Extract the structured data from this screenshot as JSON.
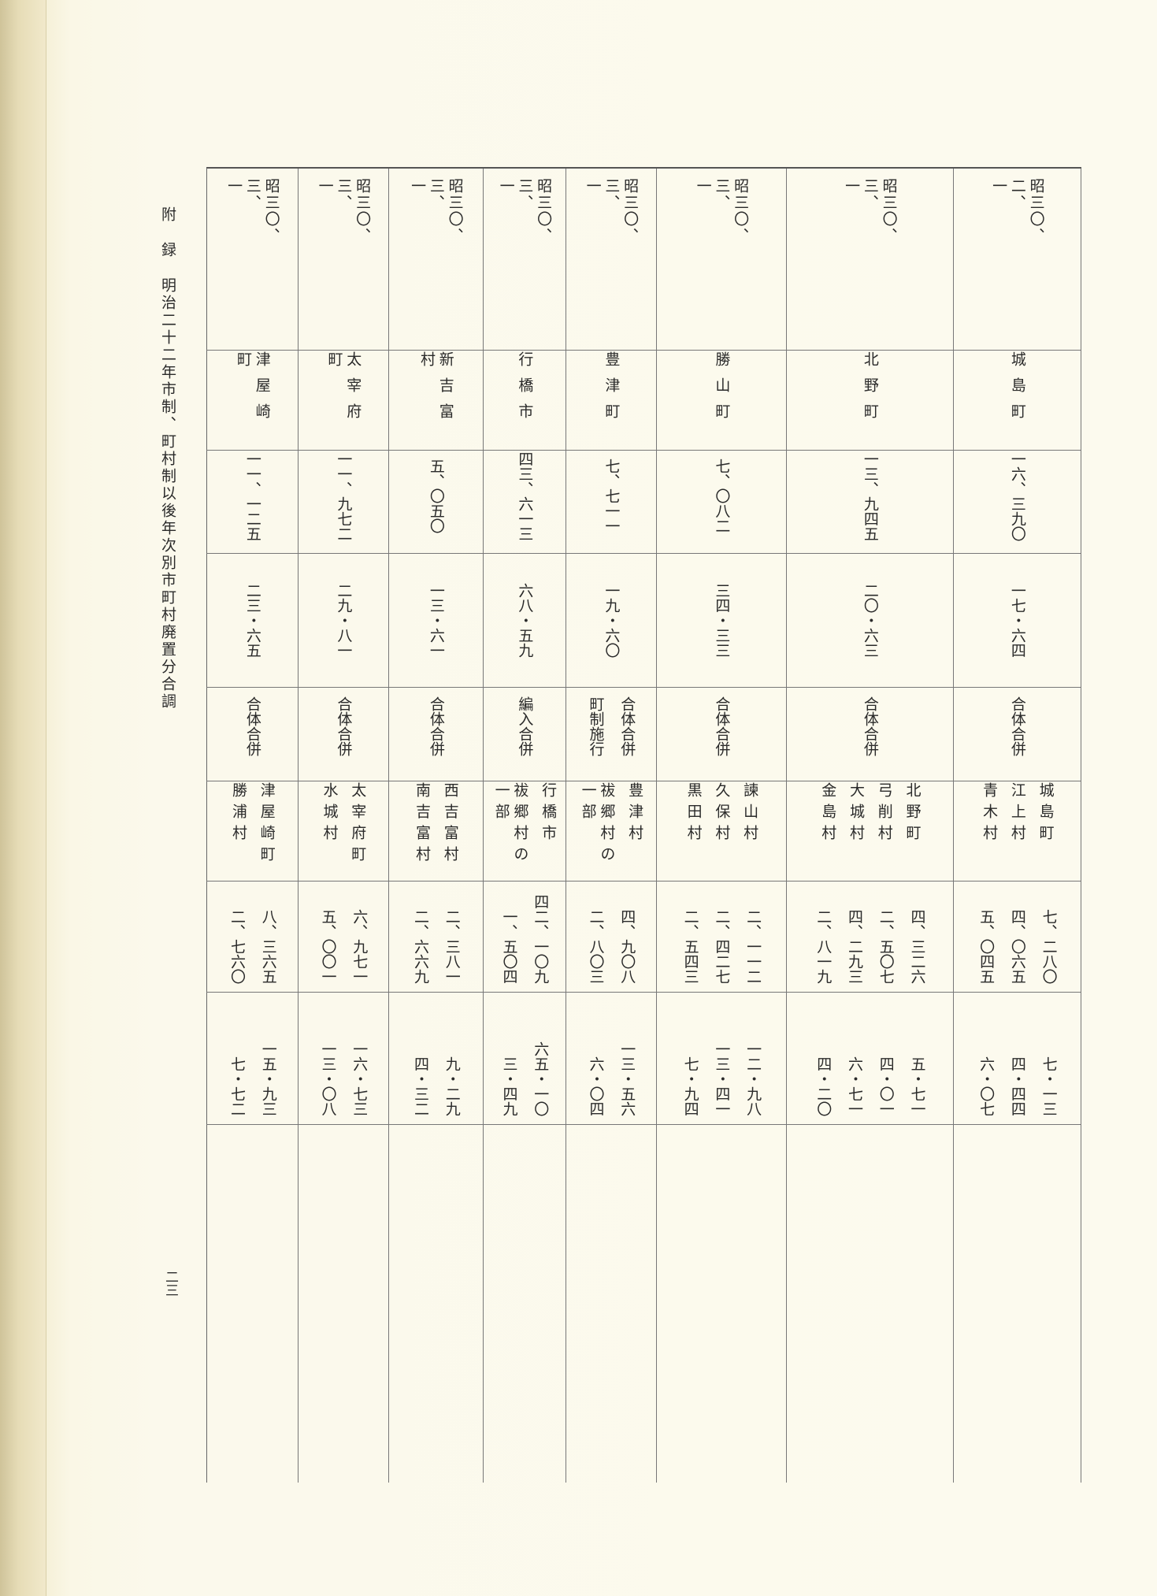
{
  "side_title": {
    "part1": "附",
    "part2": "録",
    "part3": "明治二十二年市制、町村制以後年次別市町村廃置分合調"
  },
  "page_number": "二三",
  "columns": [
    {
      "date": [
        "昭三〇、",
        "二、",
        "一"
      ],
      "name": "城島町",
      "population": "一六、三九〇",
      "area": "一七・六四",
      "type": [
        "合体合併"
      ],
      "old_names": [
        "城島町",
        "江上村",
        "青木村"
      ],
      "old_populations": [
        "七、二八〇",
        "四、〇六五",
        "五、〇四五"
      ],
      "old_areas": [
        "七・一三",
        "四・四四",
        "六・〇七"
      ]
    },
    {
      "date": [
        "昭三〇、",
        "三、",
        "一"
      ],
      "name": "北野町",
      "population": "一三、九四五",
      "area": "二〇・六三",
      "type": [
        "合体合併"
      ],
      "old_names": [
        "北野町",
        "弓削村",
        "大城村",
        "金島村"
      ],
      "old_populations": [
        "四、三二六",
        "二、五〇七",
        "四、二九三",
        "二、八一九"
      ],
      "old_areas": [
        "五・七一",
        "四・〇一",
        "六・七一",
        "四・二〇"
      ]
    },
    {
      "date": [
        "昭三〇、",
        "三、",
        "一"
      ],
      "name": "勝山町",
      "population": "七、〇八二",
      "area": "三四・三三",
      "type": [
        "合体合併"
      ],
      "old_names": [
        "諫山村",
        "久保村",
        "黒田村"
      ],
      "old_populations": [
        "二、一一二",
        "二、四二七",
        "二、五四三"
      ],
      "old_areas": [
        "一二・九八",
        "一三・四一",
        "七・九四"
      ]
    },
    {
      "date": [
        "昭三〇、",
        "三、",
        "一"
      ],
      "name": "豊津町",
      "population": "七、七一一",
      "area": "一九・六〇",
      "type": [
        "合体合併",
        "町制施行"
      ],
      "old_names": [
        "豊津村",
        "祓郷村の一部"
      ],
      "old_populations": [
        "四、九〇八",
        "二、八〇三"
      ],
      "old_areas": [
        "一三・五六",
        "六・〇四"
      ]
    },
    {
      "date": [
        "昭三〇、",
        "三、",
        "一"
      ],
      "name": "行橋市",
      "population": "四三、六一三",
      "area": "六八・五九",
      "type": [
        "編入合併"
      ],
      "old_names": [
        "行橋市",
        "祓郷村の一部"
      ],
      "old_populations": [
        "四二、一〇九",
        "一、五〇四"
      ],
      "old_areas": [
        "六五・一〇",
        "三・四九"
      ]
    },
    {
      "date": [
        "昭三〇、",
        "三、",
        "一"
      ],
      "name": "新吉富村",
      "population": "五、〇五〇",
      "area": "一三・六一",
      "type": [
        "合体合併"
      ],
      "old_names": [
        "西吉富村",
        "南吉富村"
      ],
      "old_populations": [
        "二、三八一",
        "二、六六九"
      ],
      "old_areas": [
        "九・二九",
        "四・三二"
      ]
    },
    {
      "date": [
        "昭三〇、",
        "三、",
        "一"
      ],
      "name": "太宰府町",
      "population": "一一、九七二",
      "area": "二九・八一",
      "type": [
        "合体合併"
      ],
      "old_names": [
        "太宰府町",
        "水城村"
      ],
      "old_populations": [
        "六、九七一",
        "五、〇〇一"
      ],
      "old_areas": [
        "一六・七三",
        "一三・〇八"
      ]
    },
    {
      "date": [
        "昭三〇、",
        "三、",
        "一"
      ],
      "name": "津屋崎町",
      "population": "一一、一二五",
      "area": "二三・六五",
      "type": [
        "合体合併"
      ],
      "old_names": [
        "津屋崎町",
        "勝浦村"
      ],
      "old_populations": [
        "八、三六五",
        "二、七六〇"
      ],
      "old_areas": [
        "一五・九三",
        "七・七二"
      ]
    }
  ]
}
